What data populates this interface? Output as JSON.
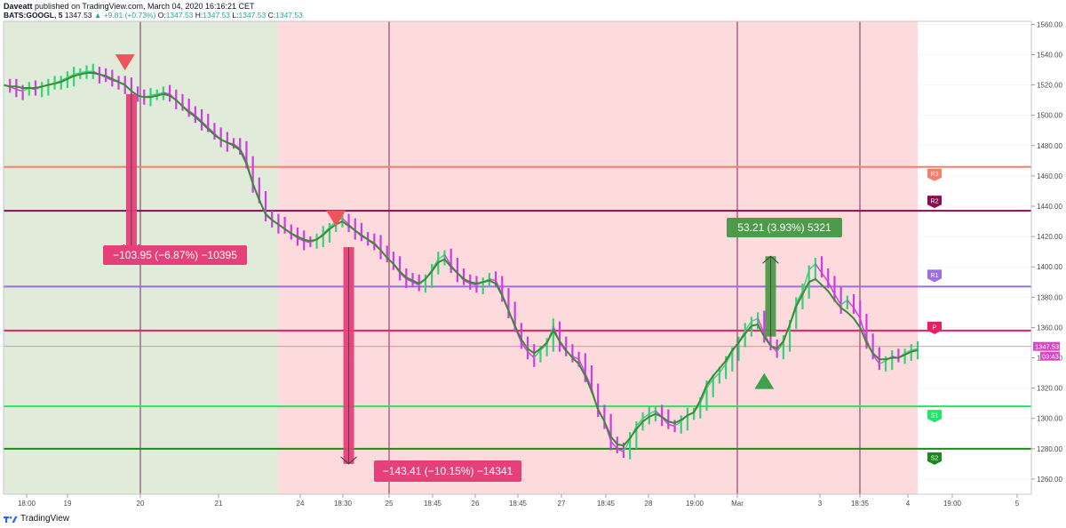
{
  "header": {
    "publisher": "Daveatt",
    "published_text": "published on TradingView.com, March 04, 2020 16:16:21 CET",
    "symbol": "BATS:GOOGL, 5",
    "last": "1347.53",
    "change": "+9.81 (+0.73%)",
    "o_label": "O:",
    "o": "1347.53",
    "h_label": "H:",
    "h": "1347.53",
    "l_label": "L:",
    "l": "1347.53",
    "c_label": "C:",
    "c": "1347.53"
  },
  "footer": {
    "brand": "TradingView"
  },
  "colors": {
    "bull_zone": "#e0ecd9",
    "bear_zone": "#fddadb",
    "price_up": "#36d17b",
    "price_down": "#cd3ddf",
    "ma": "#3b8a36",
    "trade_loss": "#e5407a",
    "trade_gain": "#4c9a4a"
  },
  "chart_data": {
    "type": "line",
    "title": "",
    "y_range": [
      1250,
      1562
    ],
    "y_ticks": [
      1560,
      1540,
      1520,
      1500,
      1480,
      1460,
      1440,
      1420,
      1400,
      1380,
      1360,
      1340,
      1320,
      1300,
      1280,
      1260
    ],
    "x_ticks": [
      "18:00",
      "19",
      "20",
      "21",
      "24",
      "18:30",
      "25",
      "18:45",
      "26",
      "18:45",
      "27",
      "18:45",
      "28",
      "19:00",
      "Mar",
      "3",
      "18:35",
      "4",
      "19:00",
      "5"
    ],
    "session_separators": [
      "20",
      "25",
      "Mar",
      "18:35"
    ],
    "background_zones": [
      {
        "regime": "bullish",
        "from": "start",
        "to": "24"
      },
      {
        "regime": "bearish",
        "from": "24",
        "to": "4"
      }
    ],
    "pivot_levels": [
      {
        "name": "R3",
        "value": 1466,
        "color": "#f4806b"
      },
      {
        "name": "R2",
        "value": 1437,
        "color": "#880e4f"
      },
      {
        "name": "R1",
        "value": 1387,
        "color": "#9b6fe0"
      },
      {
        "name": "P",
        "value": 1358,
        "color": "#e91e63"
      },
      {
        "name": "S1",
        "value": 1308,
        "color": "#22e66b"
      },
      {
        "name": "S2",
        "value": 1280,
        "color": "#1b8a1e"
      }
    ],
    "price_series": {
      "name": "GOOGL",
      "values": [
        1520,
        1519,
        1517,
        1516,
        1518,
        1517,
        1519,
        1520,
        1521,
        1523,
        1525,
        1527,
        1528,
        1529,
        1529,
        1527,
        1525,
        1523,
        1522,
        1520,
        1516,
        1513,
        1512,
        1513,
        1514,
        1515,
        1514,
        1510,
        1506,
        1503,
        1500,
        1496,
        1492,
        1488,
        1484,
        1482,
        1481,
        1478,
        1470,
        1455,
        1445,
        1434,
        1431,
        1428,
        1425,
        1422,
        1419,
        1417,
        1416,
        1418,
        1422,
        1426,
        1430,
        1432,
        1428,
        1424,
        1420,
        1418,
        1416,
        1411,
        1406,
        1402,
        1396,
        1392,
        1390,
        1388,
        1392,
        1398,
        1405,
        1408,
        1401,
        1396,
        1391,
        1389,
        1388,
        1390,
        1392,
        1391,
        1382,
        1372,
        1360,
        1350,
        1344,
        1340,
        1345,
        1349,
        1361,
        1350,
        1344,
        1341,
        1339,
        1330,
        1320,
        1305,
        1298,
        1285,
        1280,
        1278,
        1286,
        1295,
        1300,
        1303,
        1305,
        1301,
        1296,
        1295,
        1298,
        1302,
        1304,
        1310,
        1320,
        1326,
        1330,
        1336,
        1344,
        1350,
        1358,
        1364,
        1366,
        1356,
        1348,
        1344,
        1350,
        1362,
        1376,
        1384,
        1398,
        1402,
        1396,
        1390,
        1382,
        1375,
        1378,
        1373,
        1366,
        1352,
        1342,
        1336,
        1338,
        1341,
        1340,
        1343,
        1345,
        1346
      ]
    },
    "moving_average": {
      "name": "MA",
      "values": [
        1520,
        1519,
        1519,
        1518,
        1518,
        1518,
        1519,
        1520,
        1521,
        1522,
        1524,
        1526,
        1527,
        1528,
        1528,
        1527,
        1526,
        1524,
        1522,
        1520,
        1516,
        1513,
        1512,
        1512,
        1513,
        1514,
        1513,
        1510,
        1506,
        1502,
        1499,
        1495,
        1491,
        1487,
        1484,
        1482,
        1480,
        1477,
        1468,
        1455,
        1444,
        1435,
        1431,
        1428,
        1425,
        1422,
        1420,
        1418,
        1417,
        1418,
        1421,
        1425,
        1428,
        1430,
        1427,
        1424,
        1421,
        1418,
        1415,
        1411,
        1406,
        1402,
        1397,
        1393,
        1391,
        1389,
        1392,
        1397,
        1403,
        1405,
        1400,
        1396,
        1392,
        1390,
        1389,
        1390,
        1391,
        1389,
        1381,
        1371,
        1361,
        1352,
        1346,
        1343,
        1346,
        1350,
        1358,
        1351,
        1345,
        1340,
        1336,
        1328,
        1318,
        1306,
        1298,
        1288,
        1283,
        1282,
        1287,
        1293,
        1298,
        1301,
        1303,
        1301,
        1298,
        1297,
        1299,
        1302,
        1304,
        1312,
        1322,
        1328,
        1333,
        1338,
        1345,
        1350,
        1356,
        1361,
        1362,
        1354,
        1348,
        1346,
        1351,
        1362,
        1374,
        1382,
        1390,
        1392,
        1388,
        1384,
        1378,
        1373,
        1370,
        1366,
        1360,
        1350,
        1343,
        1339,
        1339,
        1340,
        1340,
        1342,
        1344,
        1345
      ]
    },
    "last_price_label": "1347.53",
    "countdown_label": "03:43",
    "signals": [
      {
        "type": "sell",
        "x_index": 19,
        "price": 1532
      },
      {
        "type": "sell",
        "x_index": 52,
        "price": 1429
      },
      {
        "type": "buy",
        "x_index": 119,
        "price": 1330
      }
    ],
    "trades": [
      {
        "entry_index": 20,
        "entry": 1514,
        "exit": 1410,
        "label": "−103.95 (−6.87%) −10395",
        "result": "loss"
      },
      {
        "entry_index": 54,
        "entry": 1413,
        "exit": 1270,
        "label": "−143.41 (−10.15%) −14341",
        "result": "loss"
      },
      {
        "entry_index": 120,
        "entry": 1354,
        "exit": 1407,
        "label": "53.21 (3.93%) 5321",
        "result": "gain"
      }
    ]
  }
}
